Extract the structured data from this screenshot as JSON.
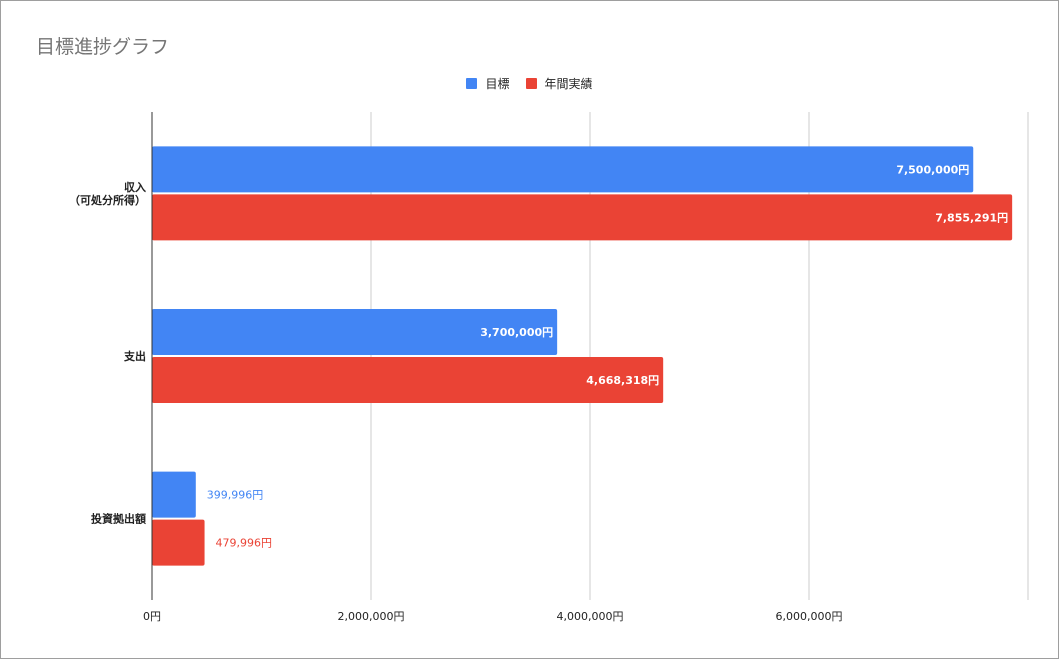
{
  "chart_data": {
    "type": "bar",
    "orientation": "horizontal",
    "title": "目標進捗グラフ",
    "legend_position": "top",
    "grid": true,
    "categories": [
      [
        "収入",
        "（可処分所得）"
      ],
      [
        "支出"
      ],
      [
        "投資拠出額"
      ]
    ],
    "series": [
      {
        "name": "目標",
        "color": "#4285f4",
        "values": [
          7500000,
          3700000,
          399996
        ],
        "labels": [
          "7,500,000円",
          "3,700,000円",
          "399,996円"
        ]
      },
      {
        "name": "年間実績",
        "color": "#ea4335",
        "values": [
          7855291,
          4668318,
          479996
        ],
        "labels": [
          "7,855,291円",
          "4,668,318円",
          "479,996円"
        ]
      }
    ],
    "xlim": [
      0,
      8000000
    ],
    "x_ticks": [
      0,
      2000000,
      4000000,
      6000000
    ],
    "x_tick_labels": [
      "0円",
      "2,000,000円",
      "4,000,000円",
      "6,000,000円"
    ]
  }
}
